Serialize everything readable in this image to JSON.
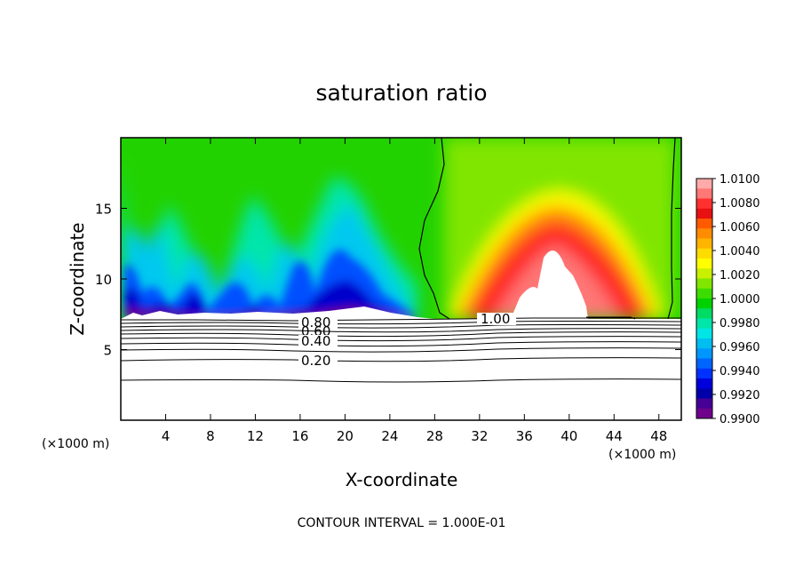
{
  "chart_data": {
    "type": "heatmap",
    "title": "saturation ratio",
    "xlabel": "X-coordinate",
    "ylabel": "Z-coordinate",
    "x_unit_left": "(×1000 m)",
    "x_unit_right": "(×1000 m)",
    "xlim": [
      0,
      50
    ],
    "ylim": [
      0,
      20
    ],
    "x_ticks": [
      4,
      8,
      12,
      16,
      20,
      24,
      28,
      32,
      36,
      40,
      44,
      48
    ],
    "y_ticks": [
      5,
      10,
      15
    ],
    "colorbar": {
      "ticks": [
        "1.0100",
        "1.0080",
        "1.0060",
        "1.0040",
        "1.0020",
        "1.0000",
        "0.9980",
        "0.9960",
        "0.9940",
        "0.9920",
        "0.9900"
      ],
      "colors": [
        "#ffaaaa",
        "#ff7777",
        "#ff3030",
        "#e81010",
        "#ff5a00",
        "#ff8c00",
        "#ffb400",
        "#ffdc00",
        "#ffff00",
        "#c8f000",
        "#80e600",
        "#3cdc00",
        "#00d200",
        "#00dc64",
        "#00e6aa",
        "#00e6e6",
        "#00bef0",
        "#0096ff",
        "#0064ff",
        "#0032ff",
        "#0000dc",
        "#0000aa",
        "#460096",
        "#6e008c"
      ]
    },
    "contour_labels": [
      {
        "text": "1.00",
        "x": 32.6,
        "z": 7.1
      },
      {
        "text": "0.80",
        "x": 17.7,
        "z": 6.8
      },
      {
        "text": "0.60",
        "x": 17.7,
        "z": 6.3
      },
      {
        "text": "0.40",
        "x": 17.7,
        "z": 5.7
      },
      {
        "text": "0.20",
        "x": 17.7,
        "z": 4.1
      }
    ],
    "footnote": "CONTOUR INTERVAL = 1.000E-01"
  }
}
